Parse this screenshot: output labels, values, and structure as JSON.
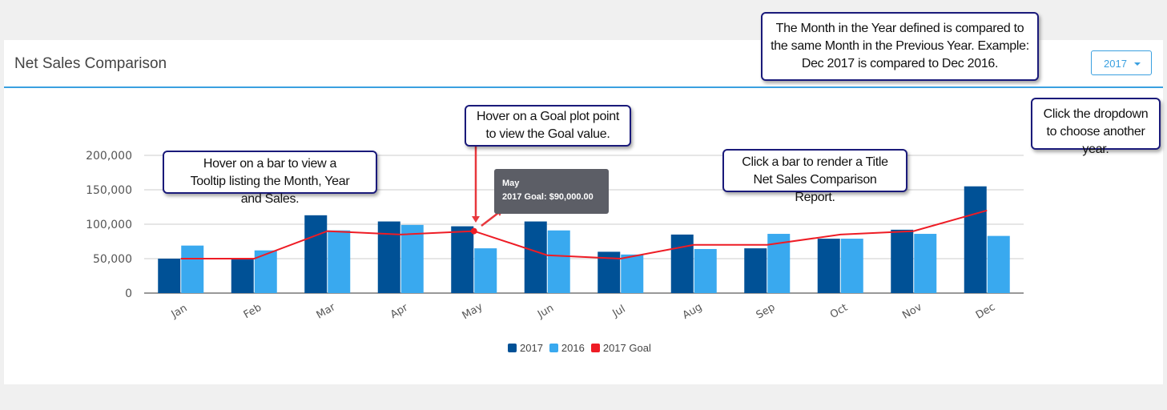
{
  "header": {
    "title": "Net Sales Comparison",
    "year_dropdown": "2017"
  },
  "callouts": {
    "year_note": "The Month in the Year defined is compared to the same Month in the Previous Year. Example: Dec 2017 is compared to Dec 2016.",
    "dropdown_note": "Click the dropdown to choose another year.",
    "goal_note": "Hover on a Goal plot point to view the Goal value.",
    "bar_note": "Hover on a bar to view a Tooltip listing the Month, Year and Sales.",
    "click_note": "Click a bar to render a Title Net Sales Comparison Report."
  },
  "tooltip": {
    "title": "May",
    "line": "2017 Goal: $90,000.00"
  },
  "colors": {
    "s2017": "#005196",
    "s2016": "#39a9ef",
    "goal": "#ee1c25"
  },
  "chart_data": {
    "type": "bar",
    "title": "Net Sales Comparison",
    "categories": [
      "Jan",
      "Feb",
      "Mar",
      "Apr",
      "May",
      "Jun",
      "Jul",
      "Aug",
      "Sep",
      "Oct",
      "Nov",
      "Dec"
    ],
    "yticks": [
      "0",
      "50,000",
      "100,000",
      "150,000",
      "200,000"
    ],
    "ylim": [
      0,
      200000
    ],
    "legend_position": "bottom",
    "series": [
      {
        "name": "2017",
        "type": "bar",
        "values": [
          50000,
          51000,
          113000,
          104000,
          97000,
          104000,
          60000,
          85000,
          65000,
          79000,
          92000,
          155000
        ]
      },
      {
        "name": "2016",
        "type": "bar",
        "values": [
          69000,
          62000,
          91000,
          99000,
          65000,
          91000,
          56000,
          64000,
          86000,
          79000,
          86000,
          83000
        ]
      },
      {
        "name": "2017 Goal",
        "type": "line",
        "values": [
          50000,
          50000,
          90000,
          85000,
          90000,
          55000,
          50000,
          70000,
          70000,
          85000,
          90000,
          120000
        ]
      }
    ]
  }
}
